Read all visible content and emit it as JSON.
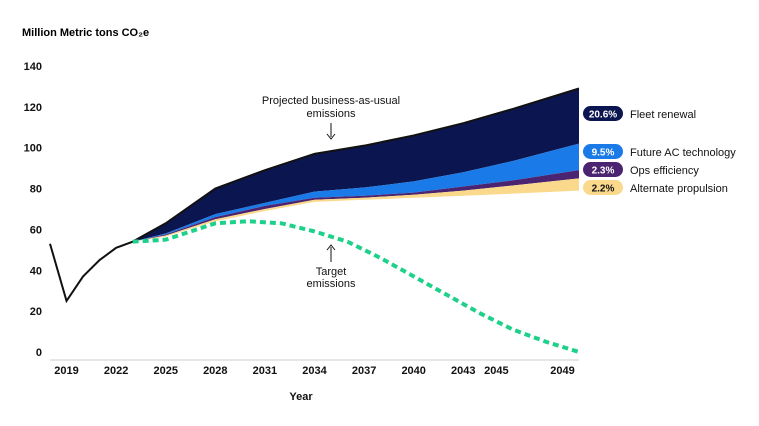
{
  "chart_data": {
    "type": "area",
    "ylabel": "Million Metric tons CO₂e",
    "xlabel": "Year",
    "ylim": [
      0,
      140
    ],
    "xlim": [
      2018,
      2050
    ],
    "yticks": [
      0,
      20,
      40,
      60,
      80,
      100,
      120,
      140
    ],
    "xticks": [
      {
        "value": 2019,
        "label": "2019"
      },
      {
        "value": 2022,
        "label": "2022"
      },
      {
        "value": 2025,
        "label": "2025"
      },
      {
        "value": 2028,
        "label": "2028"
      },
      {
        "value": 2031,
        "label": "2031"
      },
      {
        "value": 2034,
        "label": "2034"
      },
      {
        "value": 2037,
        "label": "2037"
      },
      {
        "value": 2040,
        "label": "2040"
      },
      {
        "value": 2043,
        "label": "2043"
      },
      {
        "value": 2045,
        "label": "2045"
      },
      {
        "value": 2049,
        "label": "2049"
      }
    ],
    "grid": false,
    "historical": {
      "x": [
        2018,
        2019,
        2020,
        2021,
        2022,
        2023
      ],
      "y": [
        53,
        25,
        37,
        45,
        51,
        54
      ]
    },
    "x": [
      2023,
      2025,
      2028,
      2031,
      2034,
      2037,
      2040,
      2043,
      2046,
      2050
    ],
    "layers": [
      {
        "name": "Alternate propulsion",
        "pct": "2.2%",
        "color": "#FBD98C",
        "pct_color": "#111111",
        "top": [
          54,
          57,
          65,
          70,
          74.5,
          75.5,
          77,
          79,
          81.5,
          85
        ]
      },
      {
        "name": "Ops efficiency",
        "pct": "2.3%",
        "color": "#4A2470",
        "pct_color": "#ffffff",
        "top": [
          54,
          57.5,
          66,
          71.5,
          75.5,
          76.5,
          78,
          81,
          84,
          89
        ]
      },
      {
        "name": "Future AC technology",
        "pct": "9.5%",
        "color": "#1A7AE8",
        "pct_color": "#ffffff",
        "top": [
          54,
          58,
          67.5,
          73,
          78.5,
          80.5,
          83.5,
          88,
          93.5,
          102
        ]
      },
      {
        "name": "Fleet renewal",
        "pct": "20.6%",
        "color": "#0B1650",
        "pct_color": "#ffffff",
        "top": [
          54,
          63,
          80,
          89,
          97,
          101,
          106,
          112,
          119,
          129
        ]
      }
    ],
    "target": {
      "name": "Target emissions",
      "color": "#1ED18A",
      "x": [
        2023,
        2025,
        2026.5,
        2028,
        2030,
        2032,
        2034,
        2036,
        2038,
        2040,
        2042,
        2044,
        2046,
        2048,
        2050
      ],
      "y": [
        54,
        55,
        59,
        63,
        64,
        63,
        59,
        54,
        46,
        37,
        28,
        19,
        11,
        5,
        0
      ]
    },
    "annotations": [
      {
        "text_lines": [
          "Projected business-as-usual",
          "emissions"
        ],
        "arrow": "down"
      },
      {
        "text_lines": [
          "Target",
          "emissions"
        ],
        "arrow": "up"
      }
    ]
  }
}
